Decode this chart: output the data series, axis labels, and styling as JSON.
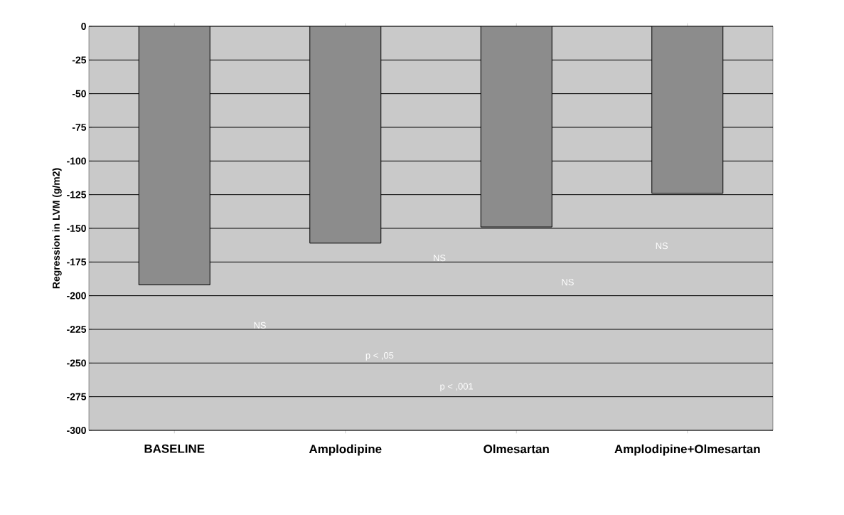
{
  "chart_data": {
    "type": "bar",
    "ylabel": "Regression in LVM (g/m2)",
    "categories": [
      "BASELINE",
      "Amplodipine",
      "Olmesartan",
      "Amplodipine+Olmesartan"
    ],
    "values": [
      -192,
      -161,
      -149,
      -124
    ],
    "color": "#8c8c8c",
    "ylim": [
      -300,
      0
    ],
    "yticks": [
      0,
      -25,
      -50,
      -75,
      -100,
      -125,
      -150,
      -175,
      -200,
      -225,
      -250,
      -275,
      -300
    ],
    "grid": "y",
    "annotations": [
      "NS",
      "NS",
      "NS",
      "NS",
      "p < ,05",
      "p < ,001"
    ]
  }
}
